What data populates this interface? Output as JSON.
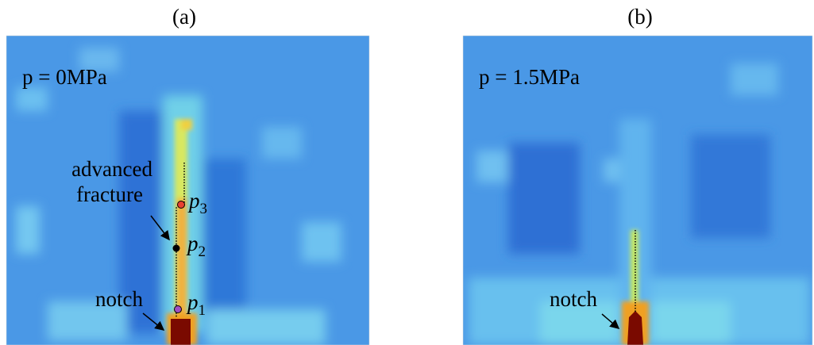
{
  "panels": [
    {
      "label": "(a)",
      "pressure": "p = 0MPa",
      "annotation": [
        "advanced",
        "fracture"
      ],
      "notch": "notch",
      "points": [
        {
          "symbol": "p",
          "index": "3"
        },
        {
          "symbol": "p",
          "index": "2"
        },
        {
          "symbol": "p",
          "index": "1"
        }
      ]
    },
    {
      "label": "(b)",
      "pressure": "p = 1.5MPa",
      "notch": "notch"
    }
  ]
}
